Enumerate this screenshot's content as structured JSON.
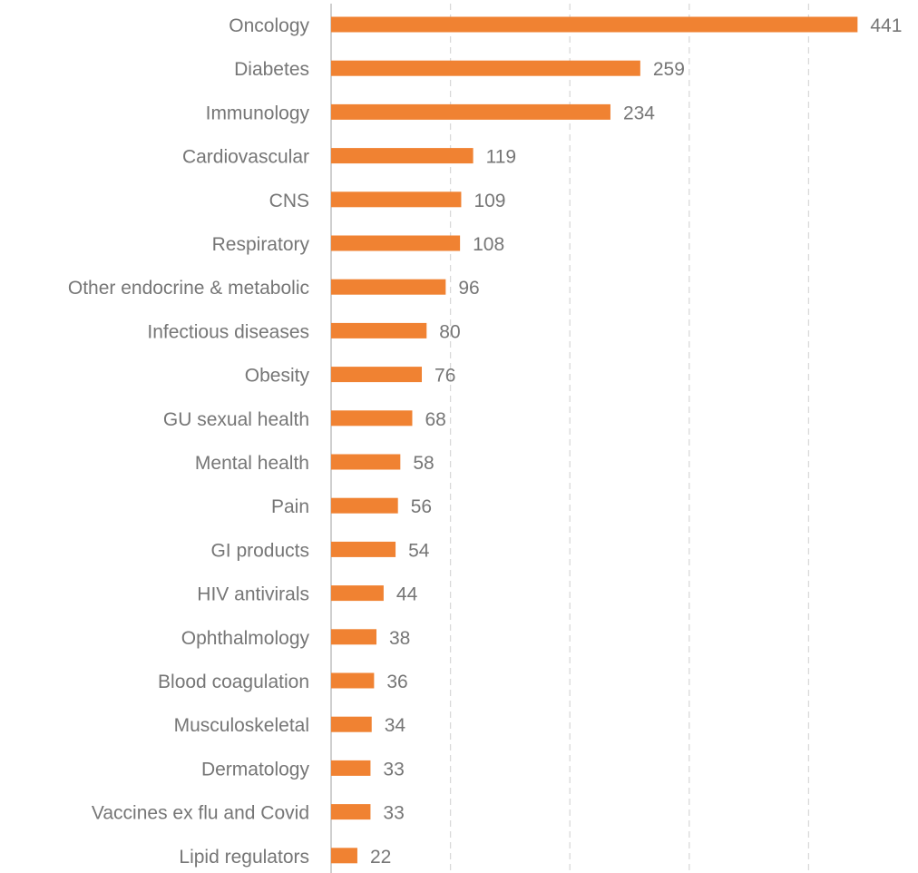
{
  "chart_data": {
    "type": "bar",
    "orientation": "horizontal",
    "categories": [
      "Oncology",
      "Diabetes",
      "Immunology",
      "Cardiovascular",
      "CNS",
      "Respiratory ",
      "Other endocrine & metabolic",
      "Infectious diseases",
      "Obesity",
      "GU sexual health",
      "Mental health",
      "Pain",
      "GI products",
      "HIV antivirals",
      "Ophthalmology",
      "Blood coagulation",
      "Musculoskeletal",
      "Dermatology",
      "Vaccines ex flu and Covid",
      "Lipid regulators"
    ],
    "values": [
      441,
      259,
      234,
      119,
      109,
      108,
      96,
      80,
      76,
      68,
      58,
      56,
      54,
      44,
      38,
      36,
      34,
      33,
      33,
      22
    ],
    "xlim": [
      0,
      500
    ],
    "gridlines": [
      0,
      100,
      200,
      300,
      400
    ],
    "grid": true,
    "grid_style": "dashed",
    "data_labels": true,
    "legend": "none",
    "colors": {
      "bar": "#F08232",
      "text": "#767676",
      "grid": "#D9D9D9",
      "axis": "#BFBFBF"
    }
  }
}
